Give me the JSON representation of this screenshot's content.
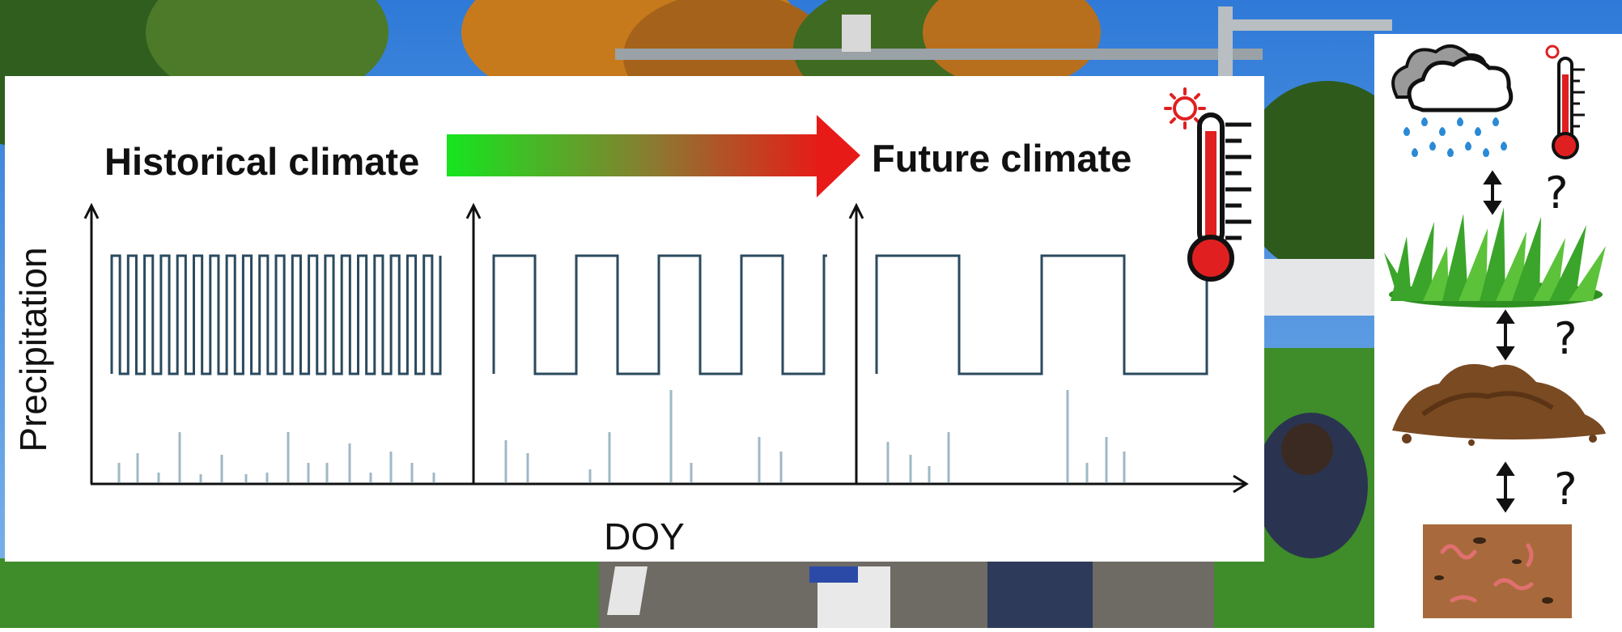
{
  "diagram": {
    "historical_label": "Historical climate",
    "future_label": "Future climate",
    "y_axis_label": "Precipitation",
    "x_axis_label": "DOY",
    "arrow_gradient": [
      "#15e51f",
      "#8b7a30",
      "#e81a18"
    ],
    "line_color": "#2b4a5e",
    "rain_bar_color": "#9fb8c6"
  },
  "side_panel": {
    "question_marks": [
      "?",
      "?",
      "?"
    ],
    "items": [
      "cloud-rain-icon",
      "thermometer-icon",
      "grass-icon",
      "soil-pile-icon",
      "soil-fauna-icon"
    ]
  }
}
